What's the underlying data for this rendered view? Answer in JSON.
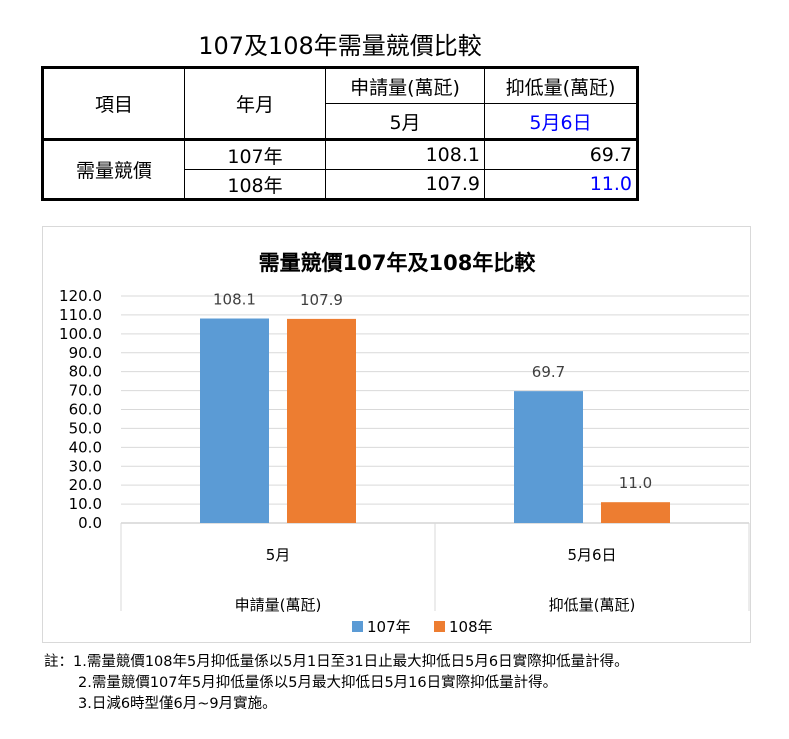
{
  "table": {
    "title": "107及108年需量競價比較",
    "headers": {
      "item": "項目",
      "yearmonth": "年月",
      "apply": "申請量(萬瓩)",
      "suppress": "抑低量(萬瓩)",
      "apply_month": "5月",
      "suppress_date": "5月6日"
    },
    "row_label": "需量競價",
    "rows": [
      {
        "year": "107年",
        "apply": "108.1",
        "suppress": "69.7"
      },
      {
        "year": "108年",
        "apply": "107.9",
        "suppress": "11.0"
      }
    ]
  },
  "chart_data": {
    "type": "bar",
    "title": "需量競價107年及108年比較",
    "categories": [
      "5月",
      "5月6日"
    ],
    "groups": [
      "申請量(萬瓩)",
      "抑低量(萬瓩)"
    ],
    "series": [
      {
        "name": "107年",
        "values": [
          108.1,
          69.7
        ],
        "color": "#5b9bd5"
      },
      {
        "name": "108年",
        "values": [
          107.9,
          11.0
        ],
        "color": "#ed7d31"
      }
    ],
    "ylim": [
      0,
      120
    ],
    "ytick_step": 10,
    "grid": true,
    "legend_position": "bottom"
  },
  "notes": [
    "註：1.需量競價108年5月抑低量係以5月1日至31日止最大抑低日5月6日實際抑低量計得。",
    "2.需量競價107年5月抑低量係以5月最大抑低日5月16日實際抑低量計得。",
    "3.日減6時型僅6月~9月實施。"
  ]
}
